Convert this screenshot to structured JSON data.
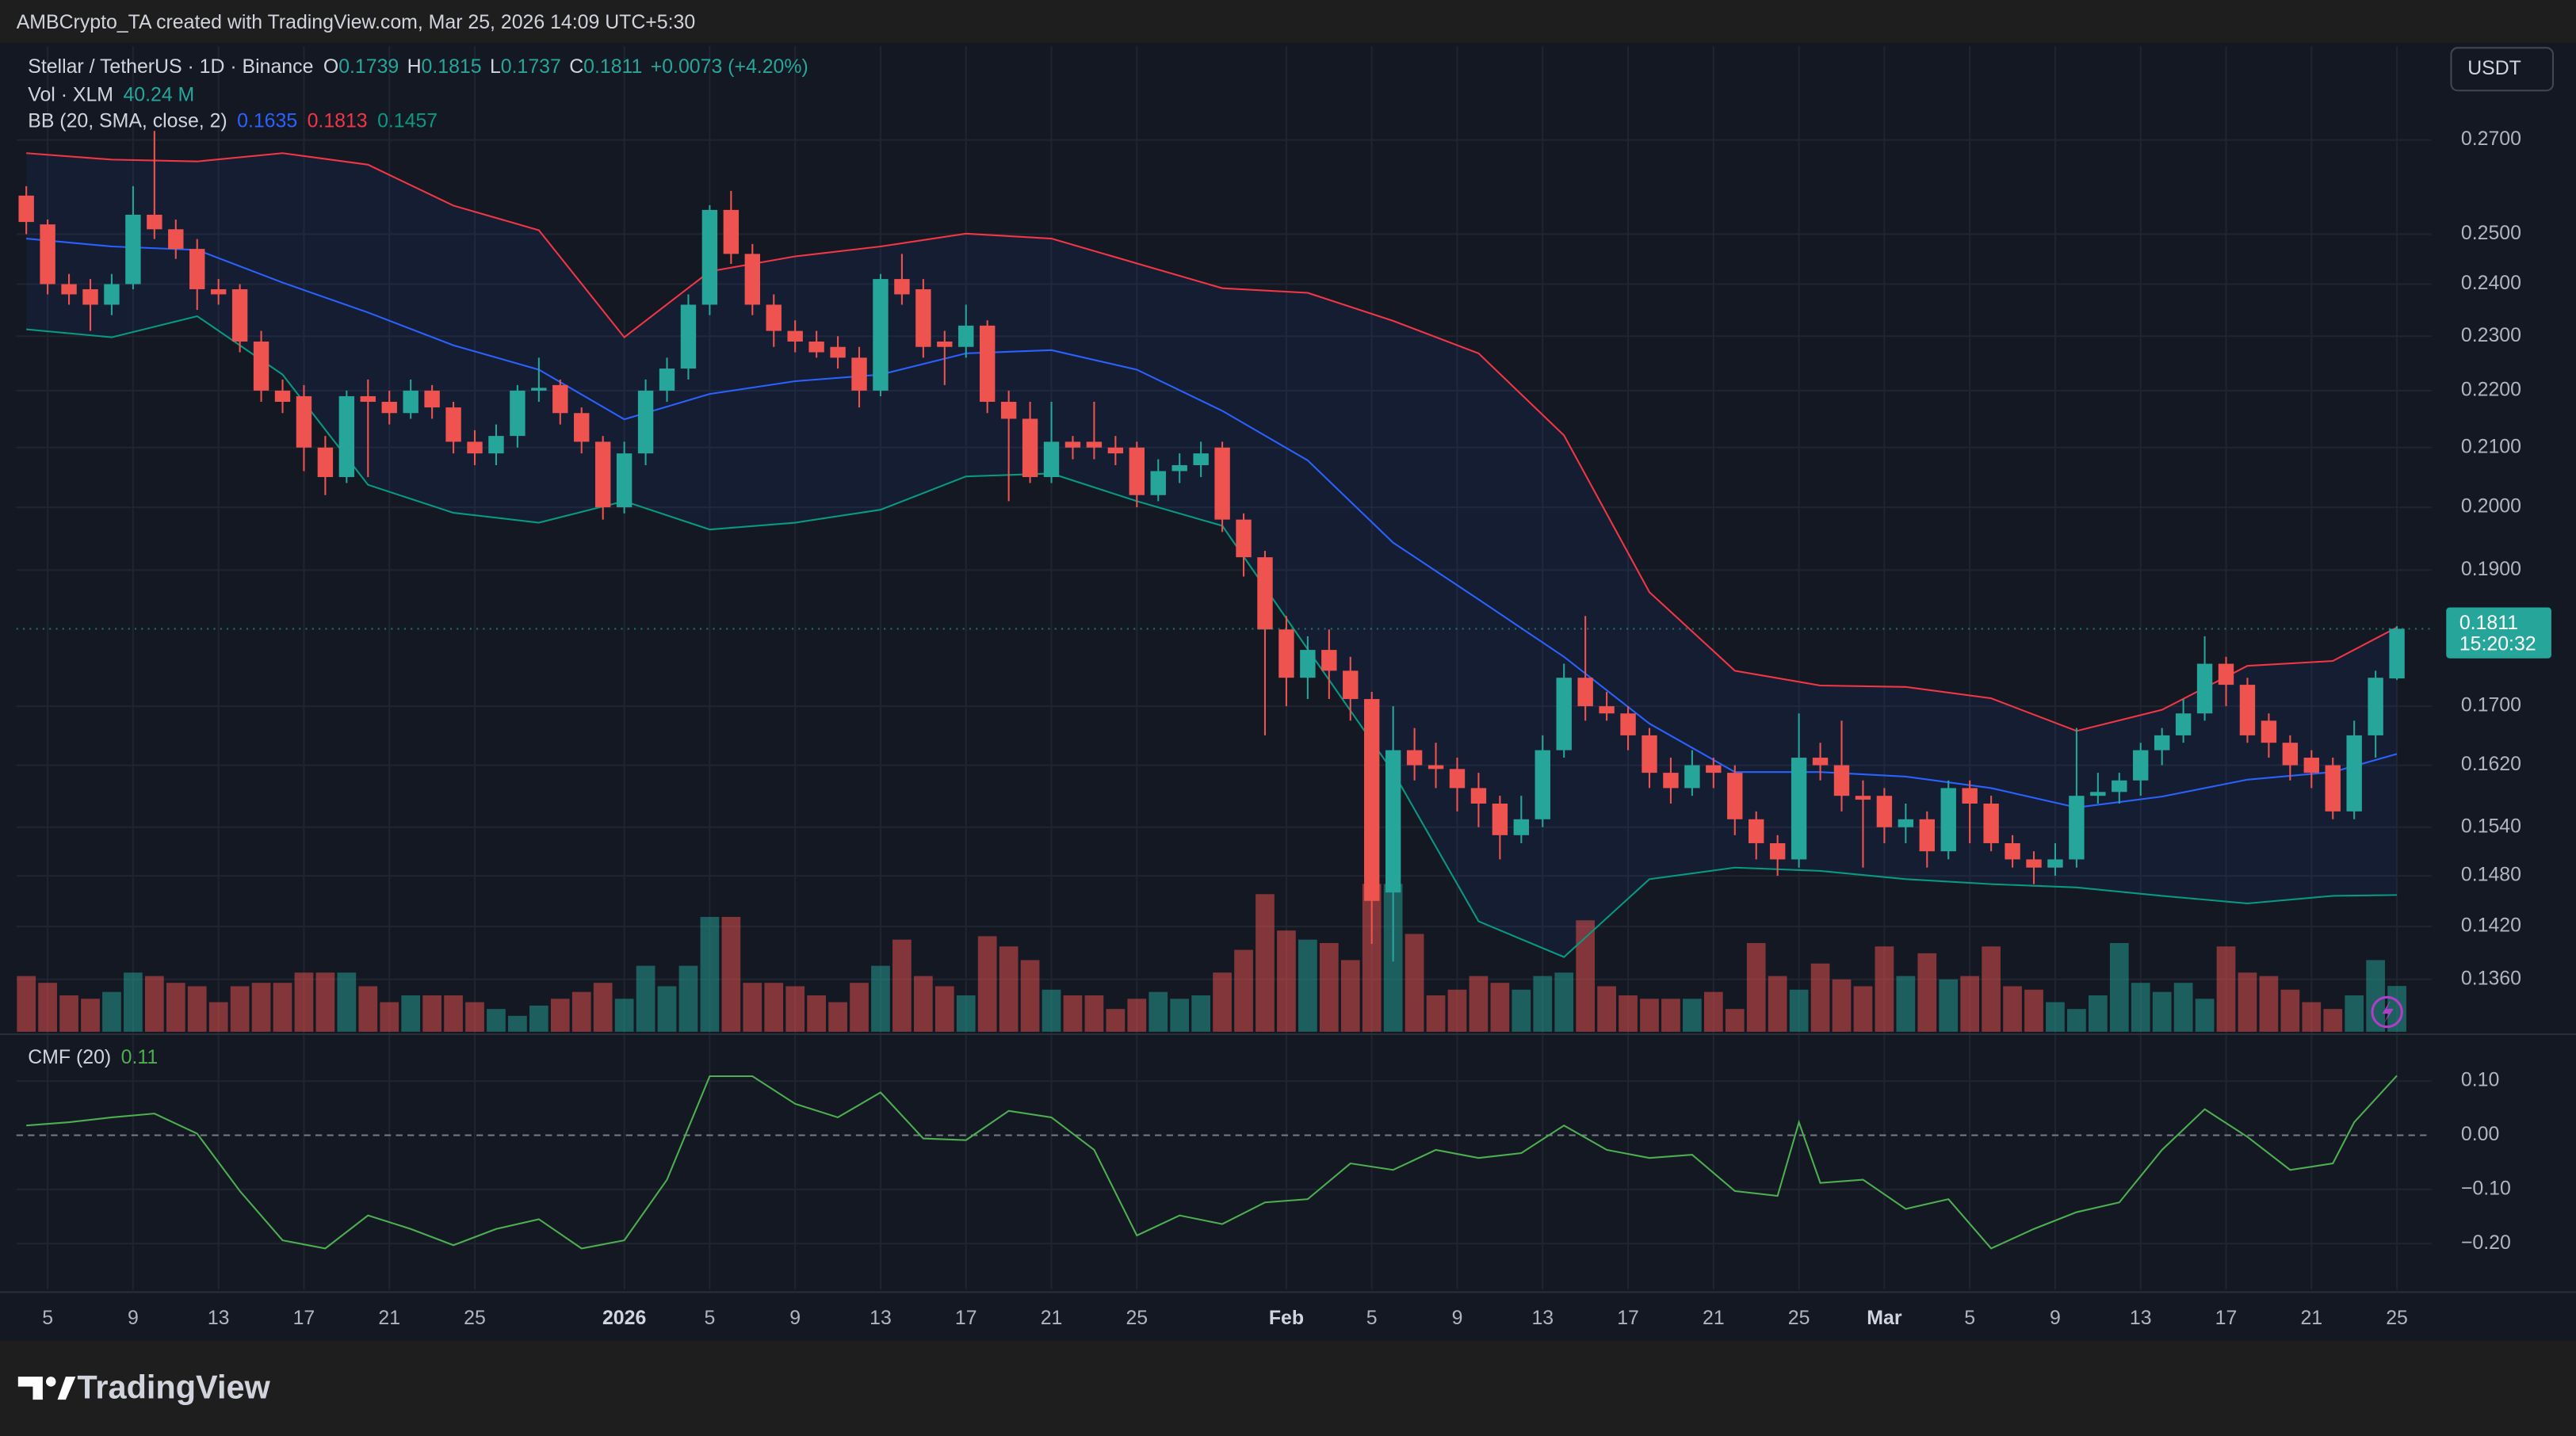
{
  "header": {
    "attribution": "AMBCrypto_TA created with TradingView.com, Mar 25, 2026 14:09 UTC+5:30"
  },
  "brand": "TradingView",
  "chart_data": [
    {
      "type": "candlestick",
      "title": "Stellar / TetherUS · 1D · Binance",
      "ohlc_labels": [
        "O",
        "H",
        "L",
        "C"
      ],
      "change_label": "+0.0073 (+4.20%)",
      "currency": "USDT",
      "countdown": "15:20:32",
      "up_color": "#26a69a",
      "down_color": "#ef5350",
      "log": true,
      "grid": true,
      "ylim": [
        0.1303,
        0.2915
      ],
      "yticks": [
        {
          "value": 0.27,
          "label": "0.2700"
        },
        {
          "value": 0.25,
          "label": "0.2500"
        },
        {
          "value": 0.24,
          "label": "0.2400"
        },
        {
          "value": 0.23,
          "label": "0.2300"
        },
        {
          "value": 0.22,
          "label": "0.2200"
        },
        {
          "value": 0.21,
          "label": "0.2100"
        },
        {
          "value": 0.2,
          "label": "0.2000"
        },
        {
          "value": 0.19,
          "label": "0.1900"
        },
        {
          "value": 0.17,
          "label": "0.1700"
        },
        {
          "value": 0.162,
          "label": "0.1620"
        },
        {
          "value": 0.154,
          "label": "0.1540"
        },
        {
          "value": 0.148,
          "label": "0.1480"
        },
        {
          "value": 0.142,
          "label": "0.1420"
        },
        {
          "value": 0.136,
          "label": "0.1360"
        }
      ],
      "categories": [
        null,
        "5",
        null,
        null,
        null,
        "9",
        null,
        null,
        null,
        "13",
        null,
        null,
        null,
        "17",
        null,
        null,
        null,
        "21",
        null,
        null,
        null,
        "25",
        null,
        null,
        null,
        null,
        null,
        null,
        "2026",
        null,
        null,
        null,
        "5",
        null,
        null,
        null,
        "9",
        null,
        null,
        null,
        "13",
        null,
        null,
        null,
        "17",
        null,
        null,
        null,
        "21",
        null,
        null,
        null,
        "25",
        null,
        null,
        null,
        null,
        null,
        null,
        "Feb",
        null,
        null,
        null,
        "5",
        null,
        null,
        null,
        "9",
        null,
        null,
        null,
        "13",
        null,
        null,
        null,
        "17",
        null,
        null,
        null,
        "21",
        null,
        null,
        null,
        "25",
        null,
        null,
        null,
        "Mar",
        null,
        null,
        null,
        "5",
        null,
        null,
        null,
        "9",
        null,
        null,
        null,
        "13",
        null,
        null,
        null,
        "17",
        null,
        null,
        null,
        "21",
        null,
        null,
        null,
        "25"
      ],
      "open": [
        0.258,
        0.252,
        0.24,
        0.239,
        0.236,
        0.24,
        0.254,
        0.251,
        0.247,
        0.239,
        0.239,
        0.229,
        0.22,
        0.219,
        0.21,
        0.205,
        0.219,
        0.218,
        0.216,
        0.22,
        0.217,
        0.211,
        0.209,
        0.212,
        0.22,
        0.221,
        0.216,
        0.211,
        0.2,
        0.209,
        0.22,
        0.224,
        0.236,
        0.255,
        0.246,
        0.236,
        0.231,
        0.229,
        0.228,
        0.226,
        0.22,
        0.241,
        0.239,
        0.229,
        0.228,
        0.232,
        0.218,
        0.215,
        0.205,
        0.211,
        0.211,
        0.21,
        0.21,
        0.202,
        0.206,
        0.207,
        0.21,
        0.198,
        0.192,
        0.181,
        0.174,
        0.178,
        0.175,
        0.171,
        0.146,
        0.164,
        0.162,
        0.1615,
        0.159,
        0.157,
        0.153,
        0.155,
        0.164,
        0.174,
        0.17,
        0.169,
        0.166,
        0.161,
        0.159,
        0.162,
        0.161,
        0.155,
        0.152,
        0.15,
        0.163,
        0.162,
        0.158,
        0.158,
        0.154,
        0.155,
        0.151,
        0.159,
        0.157,
        0.152,
        0.15,
        0.149,
        0.15,
        0.158,
        0.1585,
        0.16,
        0.164,
        0.166,
        0.169,
        0.176,
        0.173,
        0.168,
        0.165,
        0.163,
        0.162,
        0.156,
        0.166,
        0.1739
      ],
      "high": [
        0.26,
        0.253,
        0.242,
        0.241,
        0.242,
        0.26,
        0.272,
        0.253,
        0.249,
        0.241,
        0.24,
        0.231,
        0.222,
        0.221,
        0.212,
        0.22,
        0.222,
        0.22,
        0.222,
        0.221,
        0.218,
        0.213,
        0.214,
        0.221,
        0.226,
        0.222,
        0.217,
        0.212,
        0.211,
        0.222,
        0.226,
        0.238,
        0.256,
        0.259,
        0.248,
        0.238,
        0.233,
        0.231,
        0.23,
        0.228,
        0.242,
        0.246,
        0.241,
        0.231,
        0.236,
        0.233,
        0.22,
        0.218,
        0.218,
        0.212,
        0.218,
        0.212,
        0.211,
        0.208,
        0.209,
        0.211,
        0.211,
        0.199,
        0.193,
        0.183,
        0.18,
        0.181,
        0.177,
        0.172,
        0.17,
        0.167,
        0.165,
        0.163,
        0.161,
        0.158,
        0.158,
        0.166,
        0.176,
        0.183,
        0.172,
        0.17,
        0.167,
        0.163,
        0.164,
        0.163,
        0.162,
        0.156,
        0.153,
        0.169,
        0.165,
        0.168,
        0.16,
        0.159,
        0.157,
        0.156,
        0.16,
        0.16,
        0.158,
        0.153,
        0.151,
        0.152,
        0.167,
        0.161,
        0.161,
        0.165,
        0.167,
        0.171,
        0.18,
        0.177,
        0.174,
        0.169,
        0.166,
        0.164,
        0.163,
        0.168,
        0.175,
        0.1815
      ],
      "low": [
        0.25,
        0.238,
        0.236,
        0.231,
        0.234,
        0.239,
        0.249,
        0.245,
        0.235,
        0.236,
        0.227,
        0.218,
        0.216,
        0.206,
        0.202,
        0.204,
        0.205,
        0.214,
        0.215,
        0.215,
        0.209,
        0.207,
        0.207,
        0.21,
        0.218,
        0.214,
        0.209,
        0.198,
        0.199,
        0.207,
        0.218,
        0.222,
        0.234,
        0.244,
        0.234,
        0.228,
        0.227,
        0.226,
        0.224,
        0.217,
        0.219,
        0.236,
        0.226,
        0.221,
        0.226,
        0.216,
        0.201,
        0.204,
        0.204,
        0.208,
        0.208,
        0.207,
        0.2,
        0.201,
        0.204,
        0.205,
        0.196,
        0.189,
        0.166,
        0.17,
        0.171,
        0.171,
        0.168,
        0.14,
        0.138,
        0.16,
        0.159,
        0.156,
        0.154,
        0.15,
        0.152,
        0.154,
        0.163,
        0.168,
        0.168,
        0.164,
        0.159,
        0.157,
        0.158,
        0.159,
        0.153,
        0.15,
        0.148,
        0.149,
        0.16,
        0.156,
        0.149,
        0.152,
        0.152,
        0.149,
        0.15,
        0.152,
        0.151,
        0.149,
        0.147,
        0.148,
        0.149,
        0.157,
        0.157,
        0.158,
        0.162,
        0.165,
        0.168,
        0.17,
        0.165,
        0.163,
        0.16,
        0.159,
        0.155,
        0.155,
        0.163,
        0.1737
      ],
      "close": [
        0.2525,
        0.24,
        0.238,
        0.236,
        0.24,
        0.254,
        0.251,
        0.247,
        0.239,
        0.238,
        0.229,
        0.22,
        0.218,
        0.21,
        0.205,
        0.219,
        0.218,
        0.216,
        0.22,
        0.217,
        0.211,
        0.209,
        0.212,
        0.22,
        0.2205,
        0.216,
        0.211,
        0.2,
        0.209,
        0.22,
        0.224,
        0.236,
        0.255,
        0.246,
        0.236,
        0.231,
        0.229,
        0.227,
        0.226,
        0.22,
        0.241,
        0.238,
        0.228,
        0.228,
        0.232,
        0.218,
        0.215,
        0.205,
        0.211,
        0.21,
        0.21,
        0.209,
        0.202,
        0.206,
        0.207,
        0.209,
        0.198,
        0.192,
        0.181,
        0.174,
        0.178,
        0.175,
        0.171,
        0.145,
        0.164,
        0.162,
        0.1615,
        0.159,
        0.157,
        0.153,
        0.155,
        0.164,
        0.174,
        0.17,
        0.169,
        0.166,
        0.161,
        0.159,
        0.162,
        0.161,
        0.155,
        0.152,
        0.15,
        0.163,
        0.162,
        0.158,
        0.1575,
        0.154,
        0.155,
        0.151,
        0.159,
        0.157,
        0.152,
        0.15,
        0.149,
        0.15,
        0.158,
        0.1585,
        0.16,
        0.164,
        0.166,
        0.169,
        0.176,
        0.173,
        0.166,
        0.165,
        0.162,
        0.161,
        0.156,
        0.166,
        0.174,
        0.1811
      ],
      "volume": {
        "name": "Vol · XLM",
        "legend_value": "40.24 M",
        "values": [
          49,
          43,
          32,
          29,
          35,
          52,
          49,
          43,
          40,
          26,
          40,
          43,
          43,
          52,
          52,
          52,
          40,
          26,
          32,
          32,
          32,
          26,
          20,
          14,
          23,
          29,
          35,
          43,
          29,
          58,
          40,
          58,
          101,
          101,
          43,
          43,
          40,
          32,
          26,
          43,
          58,
          81,
          49,
          40,
          32,
          84,
          75,
          63,
          37,
          32,
          32,
          20,
          29,
          35,
          29,
          32,
          52,
          72,
          121,
          89,
          81,
          78,
          63,
          130,
          130,
          86,
          32,
          37,
          49,
          43,
          37,
          49,
          52,
          98,
          40,
          32,
          29,
          29,
          29,
          35,
          20,
          78,
          49,
          37,
          60,
          46,
          40,
          75,
          49,
          69,
          46,
          49,
          75,
          40,
          37,
          26,
          20,
          32,
          78,
          43,
          35,
          43,
          29,
          75,
          52,
          49,
          37,
          26,
          20,
          32,
          63,
          40.24
        ]
      },
      "bollinger": {
        "name": "BB (20, SMA, close, 2)",
        "x": [
          0,
          4,
          8,
          12,
          16,
          20,
          24,
          28,
          32,
          36,
          40,
          44,
          48,
          52,
          56,
          60,
          64,
          68,
          72,
          76,
          80,
          84,
          88,
          92,
          96,
          100,
          104,
          108,
          111
        ],
        "series": [
          {
            "color": "#2962ff",
            "values": [
              0.2491,
              0.2475,
              0.2468,
              0.2403,
              0.2345,
              0.2283,
              0.2238,
              0.2149,
              0.2194,
              0.2217,
              0.2229,
              0.2268,
              0.2274,
              0.2238,
              0.2164,
              0.2078,
              0.1943,
              0.1855,
              0.177,
              0.1676,
              0.1611,
              0.1611,
              0.1605,
              0.159,
              0.1565,
              0.1579,
              0.1601,
              0.1611,
              0.1635
            ]
          },
          {
            "color": "#f23645",
            "values": [
              0.2671,
              0.2657,
              0.2653,
              0.2671,
              0.2646,
              0.2559,
              0.2508,
              0.2298,
              0.2425,
              0.2455,
              0.2475,
              0.2501,
              0.2491,
              0.2441,
              0.2392,
              0.2383,
              0.2329,
              0.2268,
              0.2121,
              0.1866,
              0.175,
              0.1729,
              0.1727,
              0.1711,
              0.1666,
              0.1695,
              0.1757,
              0.1764,
              0.1813
            ]
          },
          {
            "color": "#089981",
            "values": [
              0.2313,
              0.2298,
              0.2338,
              0.2229,
              0.2037,
              0.1991,
              0.1975,
              0.201,
              0.1964,
              0.1975,
              0.1996,
              0.2051,
              0.2056,
              0.201,
              0.197,
              0.1781,
              0.1611,
              0.1426,
              0.1385,
              0.1476,
              0.149,
              0.1486,
              0.1476,
              0.147,
              0.1466,
              0.1456,
              0.1447,
              0.1456,
              0.1457
            ]
          }
        ]
      }
    },
    {
      "type": "line",
      "title": "CMF (20)",
      "color": "#4caf50",
      "grid": true,
      "ylim": [
        -0.285,
        0.185
      ],
      "yticks": [
        {
          "value": 0.1,
          "label": "0.10"
        },
        {
          "value": 0,
          "label": "0.00"
        },
        {
          "value": -0.1,
          "label": "−0.10"
        },
        {
          "value": -0.2,
          "label": "−0.20"
        }
      ],
      "x": [
        0,
        2,
        4,
        6,
        8,
        10,
        12,
        14,
        16,
        18,
        20,
        22,
        24,
        26,
        28,
        30,
        32,
        34,
        36,
        38,
        40,
        42,
        44,
        46,
        48,
        50,
        52,
        54,
        56,
        58,
        60,
        62,
        64,
        66,
        68,
        70,
        72,
        74,
        76,
        78,
        80,
        82,
        83,
        84,
        86,
        88,
        90,
        92,
        94,
        96,
        98,
        100,
        102,
        104,
        106,
        108,
        109,
        111
      ],
      "values": [
        0.018,
        0.024,
        0.033,
        0.04,
        0.003,
        -0.103,
        -0.194,
        -0.209,
        -0.148,
        -0.173,
        -0.203,
        -0.173,
        -0.155,
        -0.209,
        -0.194,
        -0.082,
        0.109,
        0.109,
        0.058,
        0.033,
        0.079,
        -0.006,
        -0.009,
        0.045,
        0.033,
        -0.027,
        -0.185,
        -0.148,
        -0.164,
        -0.124,
        -0.118,
        -0.052,
        -0.064,
        -0.027,
        -0.042,
        -0.033,
        0.018,
        -0.027,
        -0.042,
        -0.036,
        -0.103,
        -0.112,
        0.024,
        -0.088,
        -0.082,
        -0.136,
        -0.118,
        -0.209,
        -0.173,
        -0.142,
        -0.124,
        -0.027,
        0.048,
        -0.003,
        -0.064,
        -0.052,
        0.024,
        0.11
      ]
    }
  ]
}
